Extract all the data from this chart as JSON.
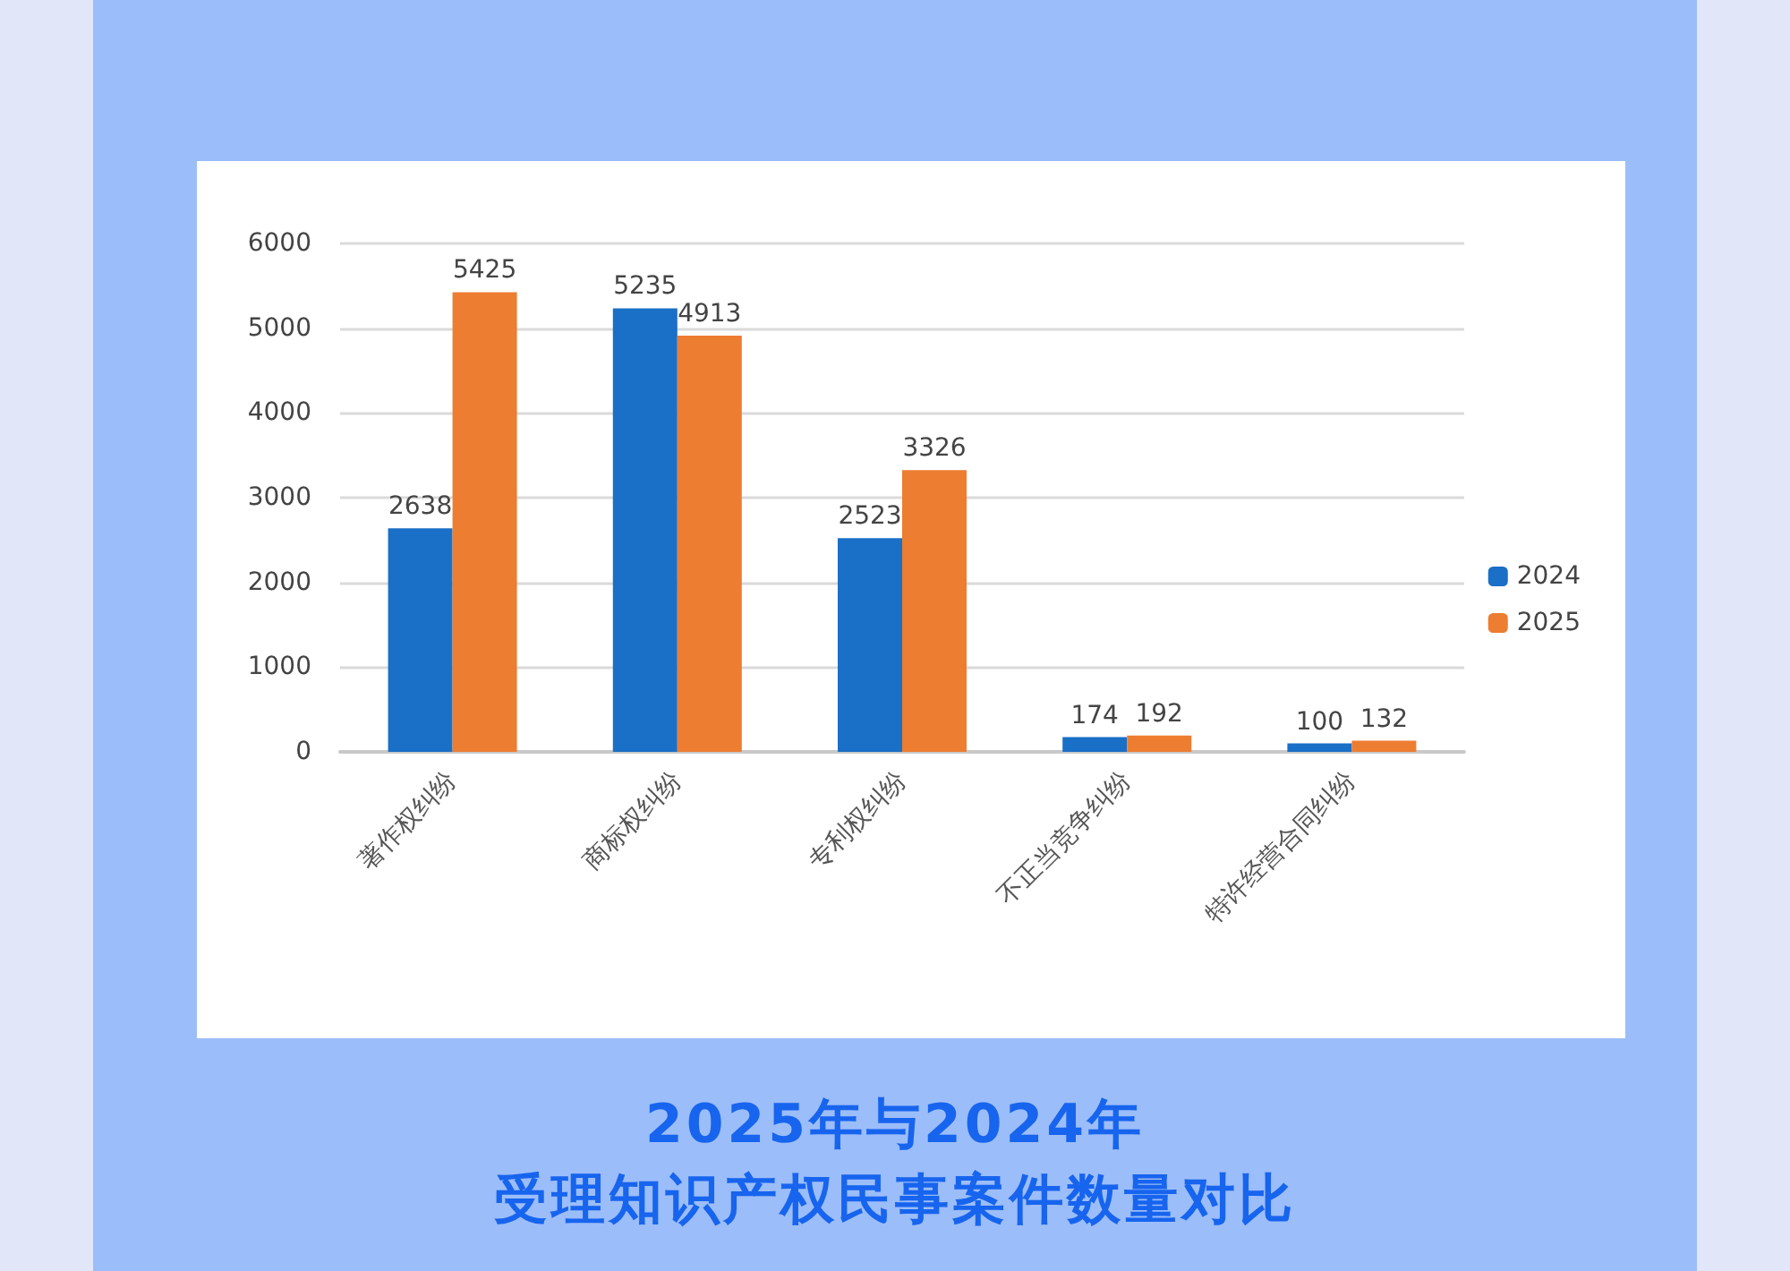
{
  "chart_data": {
    "type": "bar",
    "title": "2025年与2024年",
    "subtitle": "受理知识产权民事案件数量对比",
    "categories": [
      "著作权纠纷",
      "商标权纠纷",
      "专利权纠纷",
      "不正当竞争纠纷",
      "特许经营合同纠纷"
    ],
    "series": [
      {
        "name": "2024",
        "color": "#1a6fc6",
        "values": [
          2638,
          5235,
          2523,
          174,
          100
        ]
      },
      {
        "name": "2025",
        "color": "#ed7d31",
        "values": [
          5425,
          4913,
          3326,
          192,
          132
        ]
      }
    ],
    "ylim": [
      0,
      6000
    ],
    "yticks": [
      0,
      1000,
      2000,
      3000,
      4000,
      5000,
      6000
    ],
    "grid": "y",
    "legend": "right",
    "data_labels": true
  }
}
